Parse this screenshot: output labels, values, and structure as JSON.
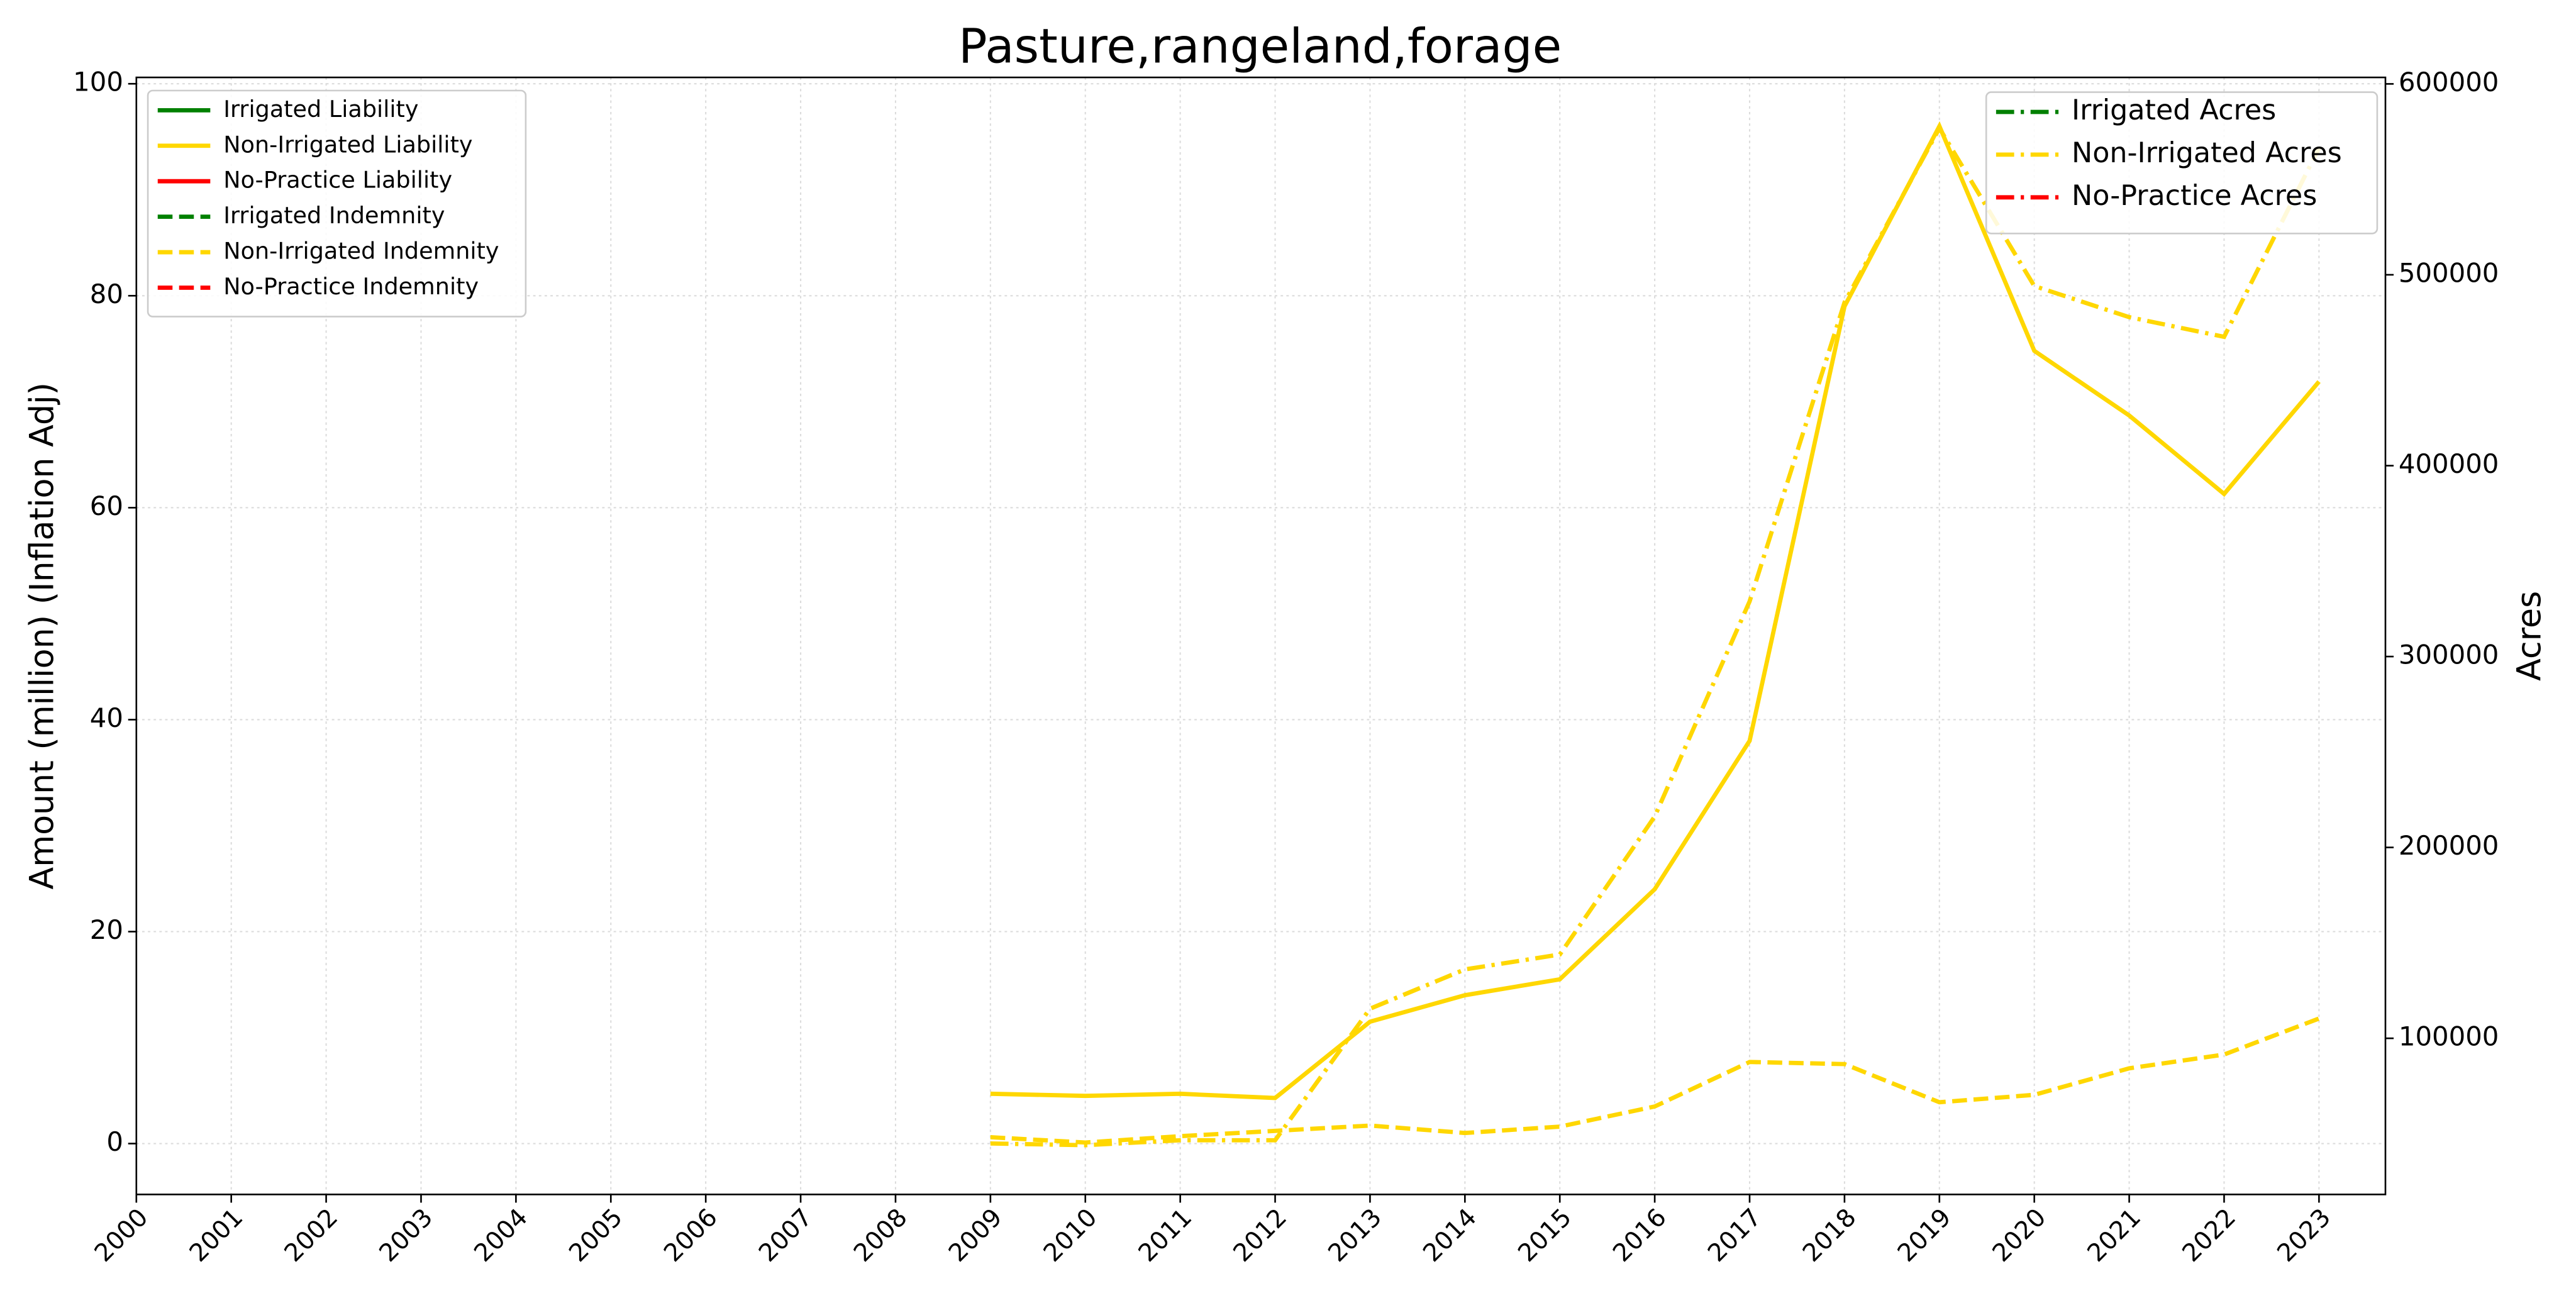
{
  "chart_data": {
    "type": "line",
    "title": "Pasture,rangeland,forage",
    "ylabel": "Amount (million) (Inflation Adj)",
    "y2label": "Acres",
    "x": [
      2009,
      2010,
      2011,
      2012,
      2013,
      2014,
      2015,
      2016,
      2017,
      2018,
      2019,
      2020,
      2021,
      2022,
      2023
    ],
    "xlim": [
      2000,
      2023.7
    ],
    "xticks": [
      2000,
      2001,
      2002,
      2003,
      2004,
      2005,
      2006,
      2007,
      2008,
      2009,
      2010,
      2011,
      2012,
      2013,
      2014,
      2015,
      2016,
      2017,
      2018,
      2019,
      2020,
      2021,
      2022,
      2023
    ],
    "ylim": [
      -4.8,
      100.6
    ],
    "yticks": [
      0,
      20,
      40,
      60,
      80,
      100
    ],
    "y2lim": [
      18200,
      603400
    ],
    "y2ticks": [
      100000,
      200000,
      300000,
      400000,
      500000,
      600000
    ],
    "grid": true,
    "series": [
      {
        "name": "Irrigated Liability",
        "color": "#008000",
        "style": "solid",
        "legend": "upper left",
        "values": [
          null,
          null,
          null,
          null,
          null,
          null,
          null,
          null,
          null,
          null,
          null,
          null,
          null,
          null,
          null
        ]
      },
      {
        "name": "Non-Irrigated Liability",
        "color": "#ffd700",
        "style": "solid",
        "legend": "upper left",
        "values": [
          4.7,
          4.5,
          4.7,
          4.3,
          11.5,
          14,
          15.5,
          24,
          38,
          79,
          96,
          74.8,
          68.7,
          61.3,
          71.9
        ]
      },
      {
        "name": "No-Practice Liability",
        "color": "#ff0000",
        "style": "solid",
        "legend": "upper left",
        "values": [
          null,
          null,
          null,
          null,
          null,
          null,
          null,
          null,
          null,
          null,
          null,
          null,
          null,
          null,
          null
        ]
      },
      {
        "name": "Irrigated Indemnity",
        "color": "#008000",
        "style": "dashed",
        "legend": "upper left",
        "values": [
          null,
          null,
          null,
          null,
          null,
          null,
          null,
          null,
          null,
          null,
          null,
          null,
          null,
          null,
          null
        ]
      },
      {
        "name": "Non-Irrigated Indemnity",
        "color": "#ffd700",
        "style": "dashed",
        "legend": "upper left",
        "values": [
          0.6,
          0.1,
          0.7,
          1.2,
          1.7,
          1.0,
          1.6,
          3.5,
          7.7,
          7.5,
          3.9,
          4.6,
          7.1,
          8.4,
          11.8
        ]
      },
      {
        "name": "No-Practice Indemnity",
        "color": "#ff0000",
        "style": "dashed",
        "legend": "upper left",
        "values": [
          null,
          null,
          null,
          null,
          null,
          null,
          null,
          null,
          null,
          null,
          null,
          null,
          null,
          null,
          null
        ]
      },
      {
        "name": "Irrigated Acres",
        "color": "#008000",
        "style": "dashdot",
        "axis": "y2",
        "legend": "upper right",
        "values": [
          null,
          null,
          null,
          null,
          null,
          null,
          null,
          null,
          null,
          null,
          null,
          null,
          null,
          null,
          null
        ]
      },
      {
        "name": "Non-Irrigated Acres",
        "color": "#ffd700",
        "style": "dashdot",
        "axis": "y2",
        "legend": "upper right",
        "values": [
          44900,
          44000,
          46600,
          46600,
          115500,
          136100,
          143900,
          216200,
          328900,
          485500,
          576800,
          494100,
          477800,
          467500,
          566400
        ]
      },
      {
        "name": "No-Practice Acres",
        "color": "#ff0000",
        "style": "dashdot",
        "axis": "y2",
        "legend": "upper right",
        "values": [
          null,
          null,
          null,
          null,
          null,
          null,
          null,
          null,
          null,
          null,
          null,
          null,
          null,
          null,
          null
        ]
      }
    ]
  }
}
